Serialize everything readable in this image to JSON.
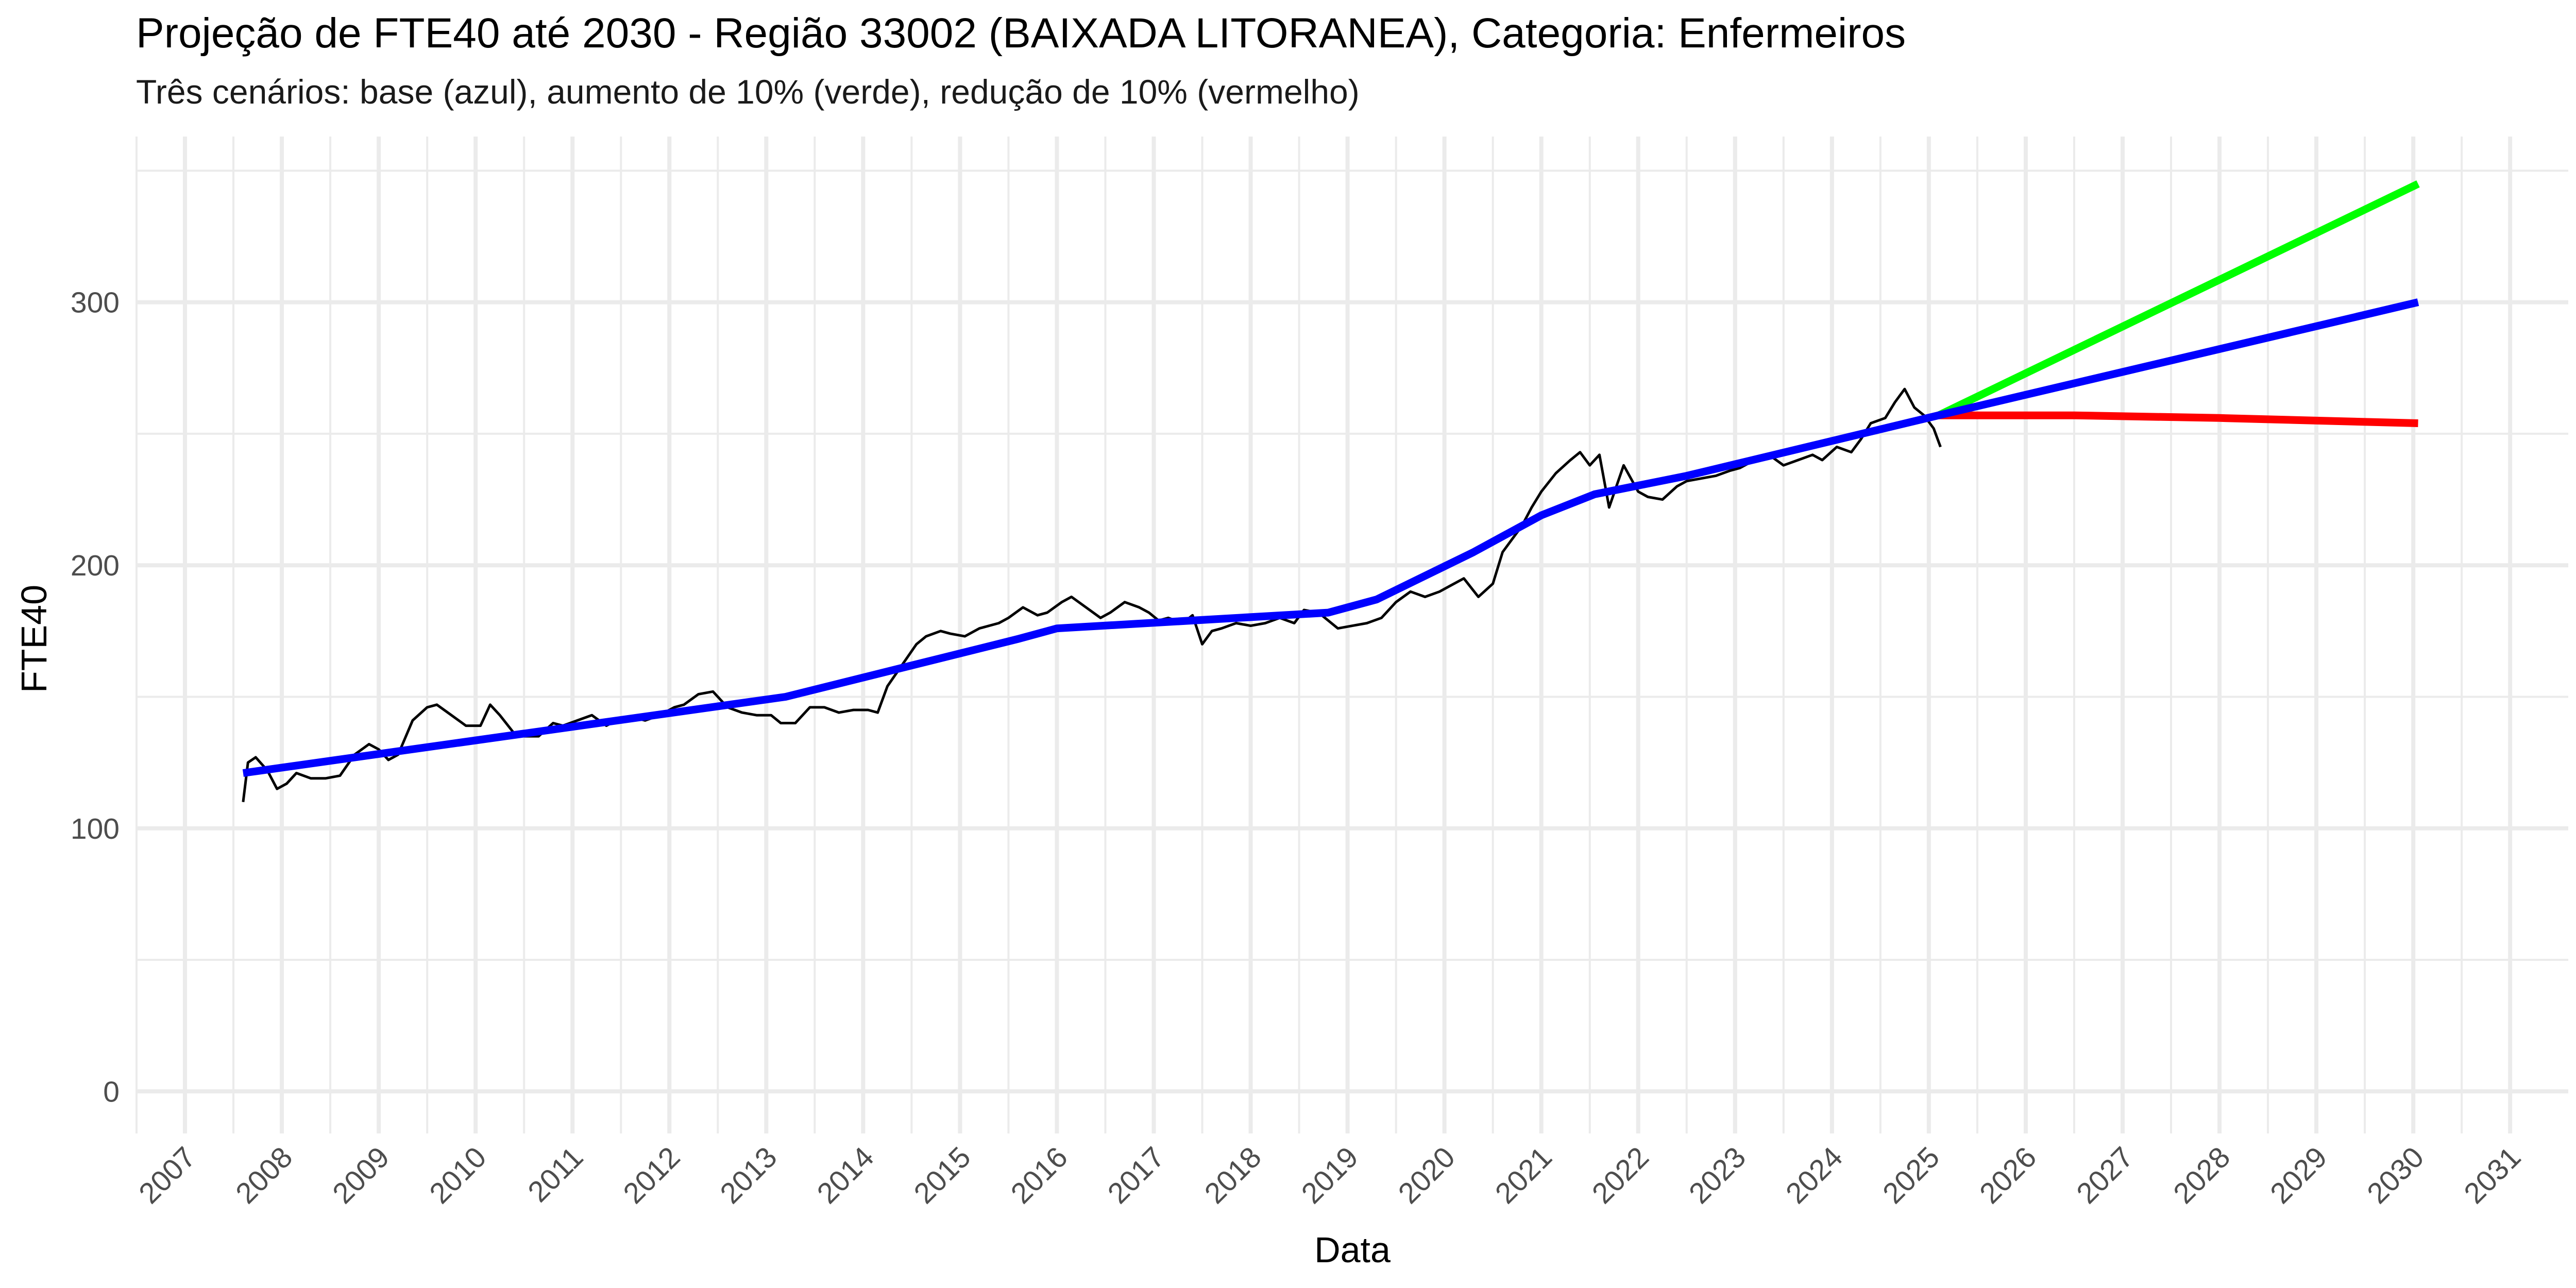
{
  "chart_data": {
    "type": "line",
    "title": "Projeção de FTE40 até 2030 - Região 33002 (BAIXADA LITORANEA), Categoria: Enfermeiros",
    "subtitle": "Três cenários: base (azul), aumento de 10% (verde), redução de 10% (vermelho)",
    "xlabel": "Data",
    "ylabel": "FTE40",
    "xlim": [
      2006.5,
      2031.6
    ],
    "ylim": [
      -16,
      363
    ],
    "x_ticks": [
      2007,
      2008,
      2009,
      2010,
      2011,
      2012,
      2013,
      2014,
      2015,
      2016,
      2017,
      2018,
      2019,
      2020,
      2021,
      2022,
      2023,
      2024,
      2025,
      2026,
      2027,
      2028,
      2029,
      2030,
      2031
    ],
    "x_tick_labels": [
      "2007",
      "2008",
      "2009",
      "2010",
      "2011",
      "2012",
      "2013",
      "2014",
      "2015",
      "2016",
      "2017",
      "2018",
      "2019",
      "2020",
      "2021",
      "2022",
      "2023",
      "2024",
      "2025",
      "2026",
      "2027",
      "2028",
      "2029",
      "2030",
      "2031"
    ],
    "y_ticks": [
      0,
      100,
      200,
      300
    ],
    "y_tick_labels": [
      "0",
      "100",
      "200",
      "300"
    ],
    "grid": true,
    "legend": "none",
    "colors": {
      "observed": "#000000",
      "base": "#0000ff",
      "increase": "#00ff00",
      "decrease": "#ff0000",
      "grid": "#ebebeb"
    },
    "series": [
      {
        "key": "observed",
        "x": [
          2007.6,
          2007.65,
          2007.73,
          2007.85,
          2007.95,
          2008.05,
          2008.15,
          2008.3,
          2008.45,
          2008.6,
          2008.75,
          2008.9,
          2009.0,
          2009.1,
          2009.2,
          2009.35,
          2009.5,
          2009.6,
          2009.75,
          2009.9,
          2010.05,
          2010.15,
          2010.25,
          2010.4,
          2010.5,
          2010.65,
          2010.8,
          2010.9,
          2011.05,
          2011.2,
          2011.35,
          2011.5,
          2011.65,
          2011.75,
          2011.9,
          2012.05,
          2012.15,
          2012.3,
          2012.45,
          2012.6,
          2012.75,
          2012.9,
          2013.05,
          2013.15,
          2013.3,
          2013.45,
          2013.6,
          2013.75,
          2013.9,
          2014.05,
          2014.15,
          2014.25,
          2014.4,
          2014.55,
          2014.65,
          2014.8,
          2014.9,
          2015.05,
          2015.2,
          2015.4,
          2015.5,
          2015.65,
          2015.8,
          2015.9,
          2016.05,
          2016.15,
          2016.3,
          2016.45,
          2016.55,
          2016.7,
          2016.85,
          2016.95,
          2017.05,
          2017.15,
          2017.3,
          2017.4,
          2017.5,
          2017.6,
          2017.7,
          2017.85,
          2018.0,
          2018.15,
          2018.3,
          2018.45,
          2018.55,
          2018.7,
          2018.9,
          2019.05,
          2019.2,
          2019.35,
          2019.5,
          2019.65,
          2019.8,
          2019.95,
          2020.05,
          2020.2,
          2020.35,
          2020.5,
          2020.6,
          2020.7,
          2020.8,
          2020.9,
          2021.0,
          2021.15,
          2021.3,
          2021.4,
          2021.5,
          2021.6,
          2021.7,
          2021.85,
          2022.0,
          2022.1,
          2022.25,
          2022.4,
          2022.5,
          2022.65,
          2022.8,
          2022.95,
          2023.05,
          2023.2,
          2023.35,
          2023.5,
          2023.65,
          2023.8,
          2023.9,
          2024.05,
          2024.2,
          2024.3,
          2024.4,
          2024.55,
          2024.65,
          2024.75,
          2024.85,
          2024.95,
          2025.05,
          2025.12
        ],
        "y": [
          110,
          125,
          127,
          122,
          115,
          117,
          121,
          119,
          119,
          120,
          128,
          132,
          130,
          126,
          128,
          141,
          146,
          147,
          143,
          139,
          139,
          147,
          143,
          136,
          135,
          135,
          140,
          139,
          141,
          143,
          139,
          142,
          142,
          141,
          143,
          146,
          147,
          151,
          152,
          146,
          144,
          143,
          143,
          140,
          140,
          146,
          146,
          144,
          145,
          145,
          144,
          154,
          162,
          170,
          173,
          175,
          174,
          173,
          176,
          178,
          180,
          184,
          181,
          182,
          186,
          188,
          184,
          180,
          182,
          186,
          184,
          182,
          179,
          180,
          178,
          181,
          170,
          175,
          176,
          178,
          177,
          178,
          180,
          178,
          183,
          182,
          176,
          177,
          178,
          180,
          186,
          190,
          188,
          190,
          192,
          195,
          188,
          193,
          205,
          210,
          215,
          222,
          228,
          235,
          240,
          243,
          238,
          242,
          222,
          238,
          228,
          226,
          225,
          230,
          232,
          233,
          234,
          236,
          237,
          240,
          242,
          238,
          240,
          242,
          240,
          245,
          243,
          248,
          254,
          256,
          262,
          267,
          260,
          257,
          252,
          245
        ]
      },
      {
        "key": "base",
        "x": [
          2007.6,
          2013.2,
          2015.6,
          2016.0,
          2018.8,
          2019.3,
          2020.3,
          2021.0,
          2021.55,
          2022.5,
          2025.1,
          2030.05
        ],
        "y": [
          121,
          150,
          172,
          176,
          182,
          187,
          205,
          219,
          227,
          234,
          257,
          300
        ]
      },
      {
        "key": "increase",
        "x": [
          2025.1,
          2030.05
        ],
        "y": [
          257,
          345
        ]
      },
      {
        "key": "decrease",
        "x": [
          2025.1,
          2026.5,
          2028.0,
          2029.0,
          2030.05
        ],
        "y": [
          257,
          257,
          256,
          255,
          254
        ]
      }
    ]
  }
}
